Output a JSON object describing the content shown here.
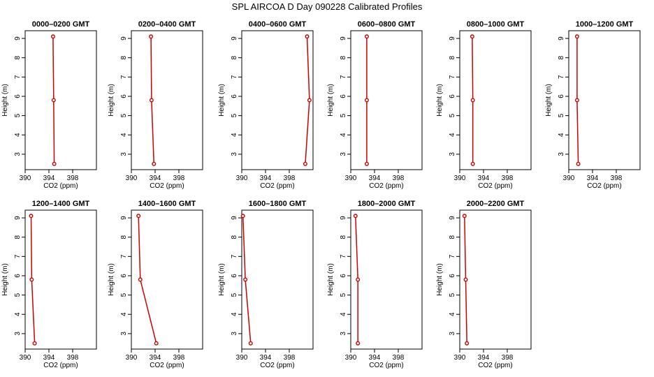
{
  "figure": {
    "title": "SPL AIRCOA D  Day 090228  Calibrated Profiles"
  },
  "colors": {
    "profile": "#cc0000",
    "axis": "#000000"
  },
  "chart_data": [
    {
      "type": "line",
      "title": "0000–0200 GMT",
      "xlabel": "CO2 (ppm)",
      "ylabel": "Height (m)",
      "xlim": [
        390,
        402
      ],
      "ylim": [
        2.2,
        9.4
      ],
      "xticks": [
        390,
        394,
        398
      ],
      "yticks": [
        3,
        4,
        5,
        6,
        7,
        8,
        9
      ],
      "series": [
        {
          "x": [
            394.7,
            394.8,
            394.9
          ],
          "y": [
            9.1,
            5.8,
            2.5
          ]
        }
      ]
    },
    {
      "type": "line",
      "title": "0200–0400 GMT",
      "xlabel": "CO2 (ppm)",
      "ylabel": "Height (m)",
      "xlim": [
        390,
        402
      ],
      "ylim": [
        2.2,
        9.4
      ],
      "xticks": [
        390,
        394,
        398
      ],
      "yticks": [
        3,
        4,
        5,
        6,
        7,
        8,
        9
      ],
      "series": [
        {
          "x": [
            393.3,
            393.4,
            393.8
          ],
          "y": [
            9.1,
            5.8,
            2.5
          ]
        }
      ]
    },
    {
      "type": "line",
      "title": "0400–0600 GMT",
      "xlabel": "CO2 (ppm)",
      "ylabel": "Height (m)",
      "xlim": [
        390,
        402
      ],
      "ylim": [
        2.2,
        9.4
      ],
      "xticks": [
        390,
        394,
        398
      ],
      "yticks": [
        3,
        4,
        5,
        6,
        7,
        8,
        9
      ],
      "series": [
        {
          "x": [
            401.0,
            401.4,
            400.7
          ],
          "y": [
            9.1,
            5.8,
            2.5
          ]
        }
      ]
    },
    {
      "type": "line",
      "title": "0600–0800 GMT",
      "xlabel": "CO2 (ppm)",
      "ylabel": "Height (m)",
      "xlim": [
        390,
        402
      ],
      "ylim": [
        2.2,
        9.4
      ],
      "xticks": [
        390,
        394,
        398
      ],
      "yticks": [
        3,
        4,
        5,
        6,
        7,
        8,
        9
      ],
      "series": [
        {
          "x": [
            392.7,
            392.7,
            392.7
          ],
          "y": [
            9.1,
            5.8,
            2.5
          ]
        }
      ]
    },
    {
      "type": "line",
      "title": "0800–1000 GMT",
      "xlabel": "CO2 (ppm)",
      "ylabel": "Height (m)",
      "xlim": [
        390,
        402
      ],
      "ylim": [
        2.2,
        9.4
      ],
      "xticks": [
        390,
        394,
        398
      ],
      "yticks": [
        3,
        4,
        5,
        6,
        7,
        8,
        9
      ],
      "series": [
        {
          "x": [
            392.1,
            392.2,
            392.2
          ],
          "y": [
            9.1,
            5.8,
            2.5
          ]
        }
      ]
    },
    {
      "type": "line",
      "title": "1000–1200 GMT",
      "xlabel": "CO2 (ppm)",
      "ylabel": "Height (m)",
      "xlim": [
        390,
        402
      ],
      "ylim": [
        2.2,
        9.4
      ],
      "xticks": [
        390,
        394,
        398
      ],
      "yticks": [
        3,
        4,
        5,
        6,
        7,
        8,
        9
      ],
      "series": [
        {
          "x": [
            391.4,
            391.4,
            391.6
          ],
          "y": [
            9.1,
            5.8,
            2.5
          ]
        }
      ]
    },
    {
      "type": "line",
      "title": "1200–1400 GMT",
      "xlabel": "CO2 (ppm)",
      "ylabel": "Height (m)",
      "xlim": [
        390,
        402
      ],
      "ylim": [
        2.2,
        9.4
      ],
      "xticks": [
        390,
        394,
        398
      ],
      "yticks": [
        3,
        4,
        5,
        6,
        7,
        8,
        9
      ],
      "series": [
        {
          "x": [
            391.0,
            391.1,
            391.6
          ],
          "y": [
            9.1,
            5.8,
            2.5
          ]
        }
      ]
    },
    {
      "type": "line",
      "title": "1400–1600 GMT",
      "xlabel": "CO2 (ppm)",
      "ylabel": "Height (m)",
      "xlim": [
        390,
        402
      ],
      "ylim": [
        2.2,
        9.4
      ],
      "xticks": [
        390,
        394,
        398
      ],
      "yticks": [
        3,
        4,
        5,
        6,
        7,
        8,
        9
      ],
      "series": [
        {
          "x": [
            391.2,
            391.5,
            394.2
          ],
          "y": [
            9.1,
            5.8,
            2.5
          ]
        }
      ]
    },
    {
      "type": "line",
      "title": "1600–1800 GMT",
      "xlabel": "CO2 (ppm)",
      "ylabel": "Height (m)",
      "xlim": [
        390,
        402
      ],
      "ylim": [
        2.2,
        9.4
      ],
      "xticks": [
        390,
        394,
        398
      ],
      "yticks": [
        3,
        4,
        5,
        6,
        7,
        8,
        9
      ],
      "series": [
        {
          "x": [
            390.2,
            390.6,
            391.5
          ],
          "y": [
            9.1,
            5.8,
            2.5
          ]
        }
      ]
    },
    {
      "type": "line",
      "title": "1800–2000 GMT",
      "xlabel": "CO2 (ppm)",
      "ylabel": "Height (m)",
      "xlim": [
        390,
        402
      ],
      "ylim": [
        2.2,
        9.4
      ],
      "xticks": [
        390,
        394,
        398
      ],
      "yticks": [
        3,
        4,
        5,
        6,
        7,
        8,
        9
      ],
      "series": [
        {
          "x": [
            390.8,
            391.2,
            391.2
          ],
          "y": [
            9.1,
            5.8,
            2.5
          ]
        }
      ]
    },
    {
      "type": "line",
      "title": "2000–2200 GMT",
      "xlabel": "CO2 (ppm)",
      "ylabel": "Height (m)",
      "xlim": [
        390,
        402
      ],
      "ylim": [
        2.2,
        9.4
      ],
      "xticks": [
        390,
        394,
        398
      ],
      "yticks": [
        3,
        4,
        5,
        6,
        7,
        8,
        9
      ],
      "series": [
        {
          "x": [
            390.8,
            391.0,
            391.2
          ],
          "y": [
            9.1,
            5.8,
            2.5
          ]
        }
      ]
    }
  ]
}
